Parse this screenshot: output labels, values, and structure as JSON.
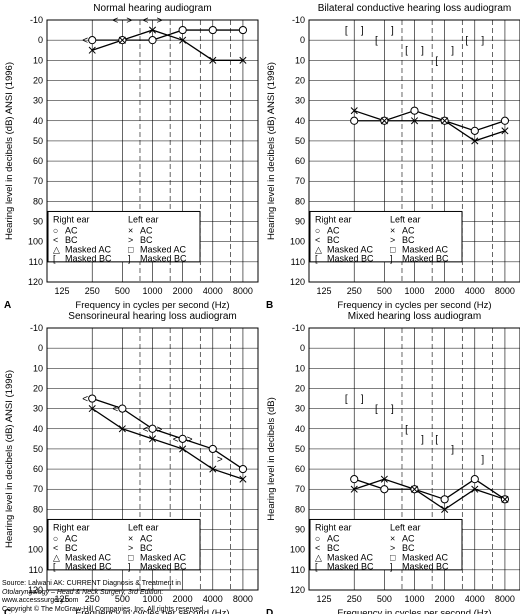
{
  "x_ticks": [
    "125",
    "250",
    "500",
    "1000",
    "2000",
    "4000",
    "8000"
  ],
  "y_ticks": [
    -10,
    0,
    10,
    20,
    30,
    40,
    50,
    60,
    70,
    80,
    90,
    100,
    110,
    120
  ],
  "legend": {
    "right_title": "Right ear",
    "left_title": "Left ear",
    "right_items": [
      {
        "sym": "○",
        "label": "AC"
      },
      {
        "sym": "<",
        "label": "BC"
      },
      {
        "sym": "△",
        "label": "Masked AC"
      },
      {
        "sym": "[",
        "label": "Masked BC"
      }
    ],
    "left_items": [
      {
        "sym": "×",
        "label": "AC"
      },
      {
        "sym": ">",
        "label": "BC"
      },
      {
        "sym": "□",
        "label": "Masked AC"
      },
      {
        "sym": "]",
        "label": "Masked BC"
      }
    ]
  },
  "chart_data": [
    {
      "type": "line",
      "panel": "A",
      "title": "Normal hearing audiogram",
      "xlabel": "Frequency in cycles per second (Hz)",
      "ylabel": "Hearing level in decibels (dB) ANSI (1996)",
      "ylim": [
        -10,
        120
      ],
      "x_scale": "log2",
      "right_ac": {
        "x": [
          250,
          500,
          1000,
          2000,
          4000,
          8000
        ],
        "y": [
          0,
          0,
          0,
          -5,
          -5,
          -5
        ]
      },
      "left_ac": {
        "x": [
          250,
          500,
          1000,
          2000,
          4000,
          8000
        ],
        "y": [
          5,
          0,
          -5,
          0,
          10,
          10
        ]
      },
      "right_bc": {
        "x": [
          250,
          500,
          1000
        ],
        "y": [
          0,
          -10,
          -10
        ]
      },
      "left_bc": {
        "x": [
          500,
          1000
        ],
        "y": [
          -10,
          -10
        ]
      },
      "right_masked_bc": {
        "x": [],
        "y": []
      },
      "left_masked_bc": {
        "x": [],
        "y": []
      }
    },
    {
      "type": "line",
      "panel": "B",
      "title": "Bilateral conductive hearing loss audiogram",
      "xlabel": "Frequency in cycles per second (Hz)",
      "ylabel": "Hearing level in decibels (dB) ANSI (1996)",
      "ylim": [
        -10,
        120
      ],
      "x_scale": "log2",
      "right_ac": {
        "x": [
          250,
          500,
          1000,
          2000,
          4000,
          8000
        ],
        "y": [
          40,
          40,
          35,
          40,
          45,
          40
        ]
      },
      "left_ac": {
        "x": [
          250,
          500,
          1000,
          2000,
          4000,
          8000
        ],
        "y": [
          35,
          40,
          40,
          40,
          50,
          45
        ]
      },
      "right_bc": {
        "x": [],
        "y": []
      },
      "left_bc": {
        "x": [],
        "y": []
      },
      "right_masked_bc": {
        "x": [
          250,
          500,
          1000,
          2000,
          4000
        ],
        "y": [
          -5,
          0,
          5,
          10,
          0
        ]
      },
      "left_masked_bc": {
        "x": [
          250,
          500,
          1000,
          2000,
          4000
        ],
        "y": [
          -5,
          -5,
          5,
          5,
          0
        ]
      }
    },
    {
      "type": "line",
      "panel": "C",
      "title": "Sensorineural hearing loss audiogram",
      "xlabel": "Frequency in cycles per second (Hz)",
      "ylabel": "Hearing level in decibels (dB) ANSI (1996)",
      "ylim": [
        -10,
        120
      ],
      "x_scale": "log2",
      "right_ac": {
        "x": [
          250,
          500,
          1000,
          2000,
          4000,
          8000
        ],
        "y": [
          25,
          30,
          40,
          45,
          50,
          60
        ]
      },
      "left_ac": {
        "x": [
          250,
          500,
          1000,
          2000,
          4000,
          8000
        ],
        "y": [
          30,
          40,
          45,
          50,
          60,
          65
        ]
      },
      "right_bc": {
        "x": [
          250,
          500,
          1000,
          2000
        ],
        "y": [
          25,
          30,
          40,
          45
        ]
      },
      "left_bc": {
        "x": [
          1000,
          2000,
          4000
        ],
        "y": [
          40,
          45,
          55
        ]
      },
      "right_masked_bc": {
        "x": [],
        "y": []
      },
      "left_masked_bc": {
        "x": [],
        "y": []
      }
    },
    {
      "type": "line",
      "panel": "D",
      "title": "Mixed hearing loss audiogram",
      "xlabel": "Frequency in cycles per second (Hz)",
      "ylabel": "Hearing level in decibels (dB)",
      "ylim": [
        -10,
        120
      ],
      "x_scale": "log2",
      "right_ac": {
        "x": [
          250,
          500,
          1000,
          2000,
          4000,
          8000
        ],
        "y": [
          65,
          70,
          70,
          75,
          65,
          75
        ]
      },
      "left_ac": {
        "x": [
          250,
          500,
          1000,
          2000,
          4000,
          8000
        ],
        "y": [
          70,
          65,
          70,
          80,
          70,
          75
        ]
      },
      "right_bc": {
        "x": [],
        "y": []
      },
      "left_bc": {
        "x": [],
        "y": []
      },
      "right_masked_bc": {
        "x": [
          250,
          500,
          1000,
          2000
        ],
        "y": [
          25,
          30,
          40,
          45
        ]
      },
      "left_masked_bc": {
        "x": [
          250,
          500,
          1000,
          2000,
          4000
        ],
        "y": [
          25,
          30,
          45,
          50,
          55
        ]
      }
    }
  ],
  "source": {
    "line1": "Source: Lalwani AK: CURRENT Diagnosis & Treatment in",
    "line2": "Otolaryngology – Head & Neck Surgery, 3rd Edition:",
    "line3": "www.accesssurgery.com",
    "line4": "Copyright © The McGraw-Hill Companies, Inc. All rights reserved."
  }
}
